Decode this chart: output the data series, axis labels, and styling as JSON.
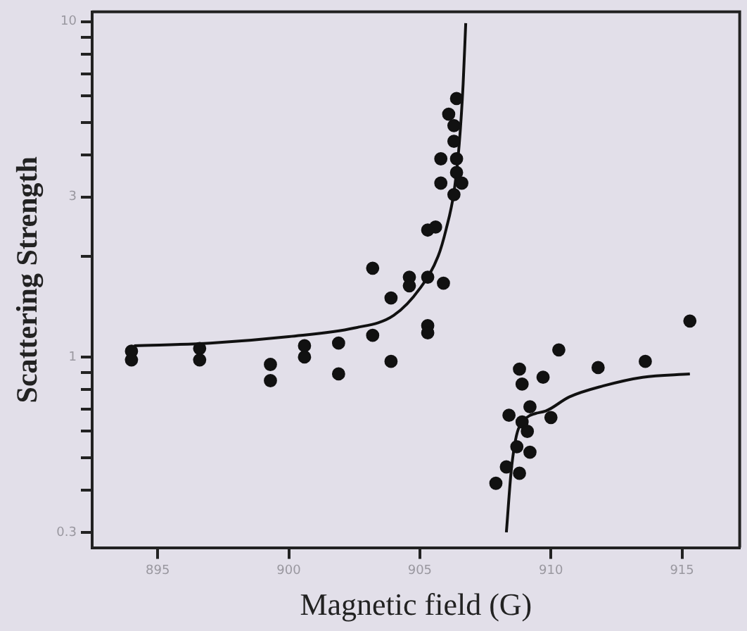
{
  "chart_data": {
    "type": "scatter",
    "xlabel": "Magnetic field (G)",
    "ylabel": "Scattering Strength",
    "xlim": [
      892.5,
      917.2
    ],
    "xticks": [
      895,
      900,
      905,
      910,
      915
    ],
    "ylim": [
      0.27,
      10.7
    ],
    "log": "y",
    "yticks": [
      {
        "value": 0.3,
        "label": "0.3"
      },
      {
        "value": 0.4,
        "label": null
      },
      {
        "value": 0.5,
        "label": null
      },
      {
        "value": 0.6,
        "label": null
      },
      {
        "value": 0.7,
        "label": null
      },
      {
        "value": 0.8,
        "label": null
      },
      {
        "value": 0.9,
        "label": null
      },
      {
        "value": 1,
        "label": "1"
      },
      {
        "value": 2,
        "label": null
      },
      {
        "value": 3,
        "label": "3"
      },
      {
        "value": 4,
        "label": null
      },
      {
        "value": 5,
        "label": null
      },
      {
        "value": 6,
        "label": null
      },
      {
        "value": 7,
        "label": null
      },
      {
        "value": 8,
        "label": null
      },
      {
        "value": 9,
        "label": null
      },
      {
        "value": 10,
        "label": "10"
      }
    ],
    "grid": false,
    "legend": false,
    "marker": "circle",
    "series": [
      {
        "type": "scatter",
        "color": "#111111",
        "x": [
          894.0,
          894.0,
          896.6,
          896.6,
          899.3,
          899.3,
          900.6,
          900.6,
          901.9,
          901.9,
          903.2,
          903.9,
          904.6,
          904.6,
          905.3,
          905.9,
          903.2,
          903.9,
          905.3,
          905.3,
          906.4,
          906.1,
          906.3,
          906.3,
          905.8,
          906.4,
          906.4,
          905.8,
          906.6,
          906.3,
          905.6,
          905.3,
          910.3,
          911.8,
          913.6,
          915.3,
          908.8,
          908.9,
          909.7,
          910.0,
          908.4,
          909.2,
          908.9,
          909.1,
          908.7,
          909.2,
          908.3,
          908.8,
          907.9
        ],
        "values": [
          1.04,
          0.98,
          1.06,
          0.98,
          0.95,
          0.85,
          1.08,
          1.0,
          1.1,
          0.89,
          1.84,
          1.5,
          1.73,
          1.63,
          1.73,
          1.66,
          1.16,
          0.97,
          1.24,
          1.18,
          5.9,
          5.3,
          4.9,
          4.4,
          3.9,
          3.9,
          3.55,
          3.3,
          3.3,
          3.05,
          2.44,
          2.39,
          1.05,
          0.93,
          0.97,
          1.28,
          0.92,
          0.83,
          0.87,
          0.66,
          0.67,
          0.71,
          0.64,
          0.6,
          0.54,
          0.52,
          0.47,
          0.45,
          0.42
        ]
      },
      {
        "type": "line",
        "color": "#111111",
        "marker": "none",
        "x": [
          894.1,
          897,
          900,
          902.5,
          904,
          905,
          905.7,
          906,
          906.3,
          906.5,
          906.65,
          906.75
        ],
        "values": [
          1.08,
          1.1,
          1.15,
          1.22,
          1.33,
          1.6,
          2.0,
          2.4,
          3.1,
          4.3,
          6.5,
          9.9
        ]
      },
      {
        "type": "line",
        "color": "#111111",
        "marker": "none",
        "x": [
          908.3,
          908.5,
          908.8,
          909.8,
          910.7,
          912.0,
          913.5,
          915.3
        ],
        "values": [
          0.3,
          0.47,
          0.62,
          0.69,
          0.76,
          0.82,
          0.87,
          0.89
        ]
      }
    ]
  }
}
